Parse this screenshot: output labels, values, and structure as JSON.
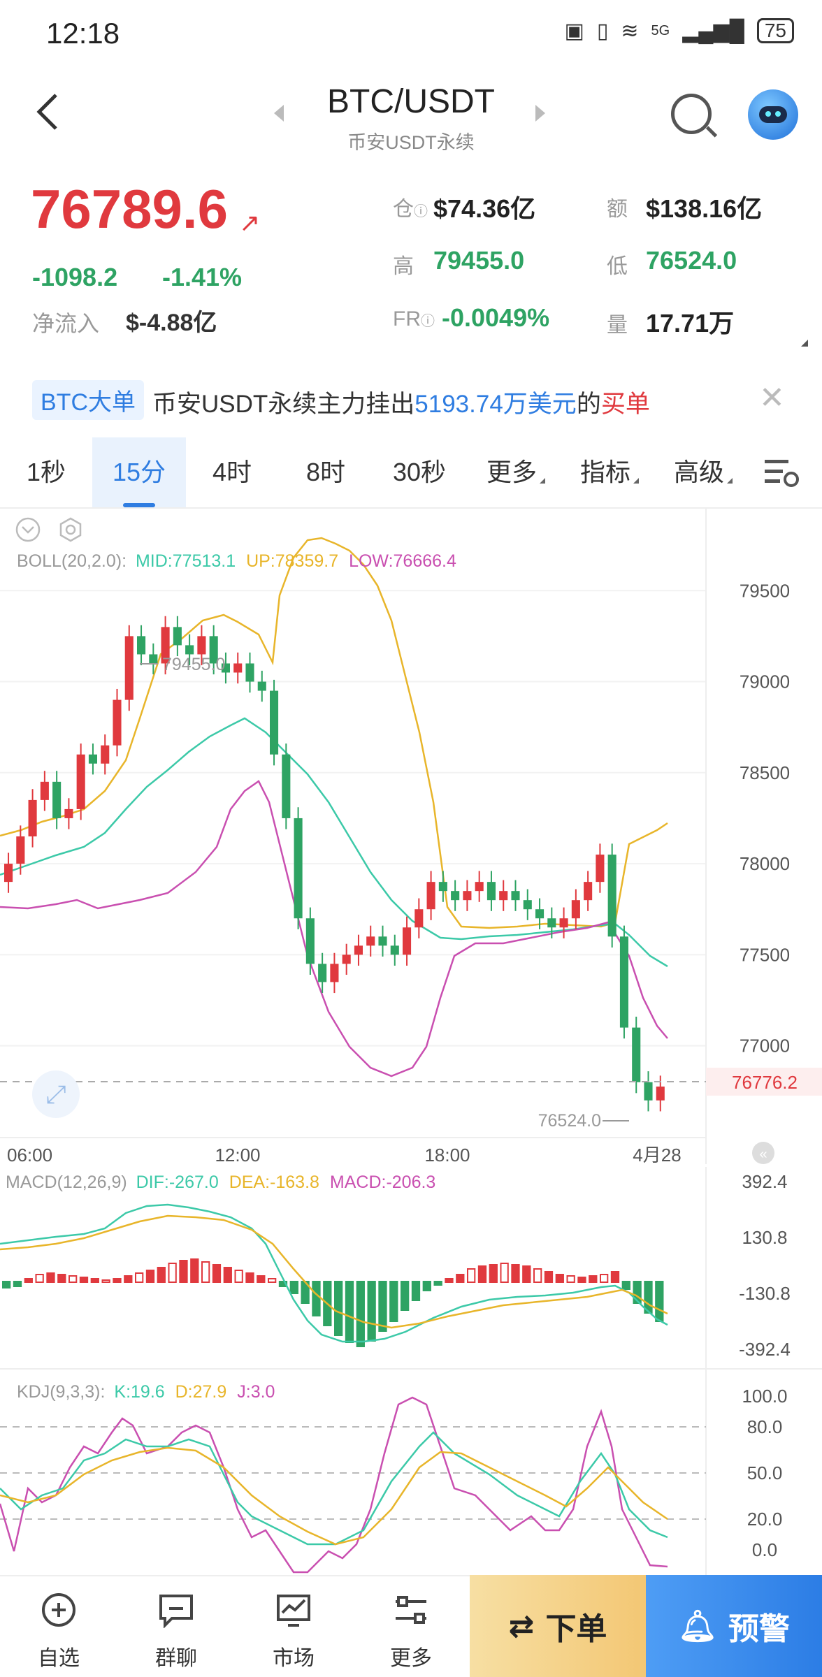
{
  "status_bar": {
    "time": "12:18",
    "battery": "75",
    "network": "5G"
  },
  "header": {
    "title": "BTC/USDT",
    "subtitle": "币安USDT永续"
  },
  "price": {
    "last": "76789.6",
    "change": "-1098.2",
    "change_pct": "-1.41%",
    "net_inflow_label": "净流入",
    "net_inflow": "$-4.88亿",
    "open_interest_label": "仓",
    "open_interest": "$74.36亿",
    "turnover_label": "额",
    "turnover": "$138.16亿",
    "high_label": "高",
    "high": "79455.0",
    "low_label": "低",
    "low": "76524.0",
    "funding_label": "FR",
    "funding": "-0.0049%",
    "volume_label": "量",
    "volume": "17.71万"
  },
  "banner": {
    "tag": "BTC大单",
    "text_prefix": "币安USDT永续主力挂出",
    "amount": "5193.74万美元",
    "text_mid": "的",
    "action": "买单"
  },
  "tabs": [
    "1秒",
    "15分",
    "4时",
    "8时",
    "30秒",
    "更多",
    "指标",
    "高级"
  ],
  "active_tab": "15分",
  "chart_data": [
    {
      "type": "candlestick",
      "indicator_label": "BOLL(20,2.0):",
      "mid_label": "MID:77513.1",
      "up_label": "UP:78359.7",
      "low_label": "LOW:76666.4",
      "y_ticks": [
        "79500",
        "79000",
        "78500",
        "78000",
        "77500",
        "77000"
      ],
      "x_ticks": [
        "06:00",
        "12:00",
        "18:00",
        "4月28"
      ],
      "high_marker": "79455.0",
      "low_marker": "76524.0",
      "current_price_tag": "76776.2",
      "ylim": [
        76350,
        79950
      ]
    },
    {
      "type": "bar",
      "indicator_label": "MACD(12,26,9)",
      "dif_label": "DIF:-267.0",
      "dea_label": "DEA:-163.8",
      "macd_label": "MACD:-206.3",
      "y_ticks": [
        "392.4",
        "130.8",
        "-130.8",
        "-392.4"
      ]
    },
    {
      "type": "line",
      "indicator_label": "KDJ(9,3,3):",
      "k_label": "K:19.6",
      "d_label": "D:27.9",
      "j_label": "J:3.0",
      "y_ticks": [
        "100.0",
        "80.0",
        "50.0",
        "20.0",
        "0.0"
      ]
    }
  ],
  "bottom_nav": {
    "items": [
      "自选",
      "群聊",
      "市场",
      "更多"
    ],
    "order": "下单",
    "alert": "预警"
  },
  "colors": {
    "up": "#e0393e",
    "down": "#2ea363",
    "accent": "#2f7de1"
  }
}
